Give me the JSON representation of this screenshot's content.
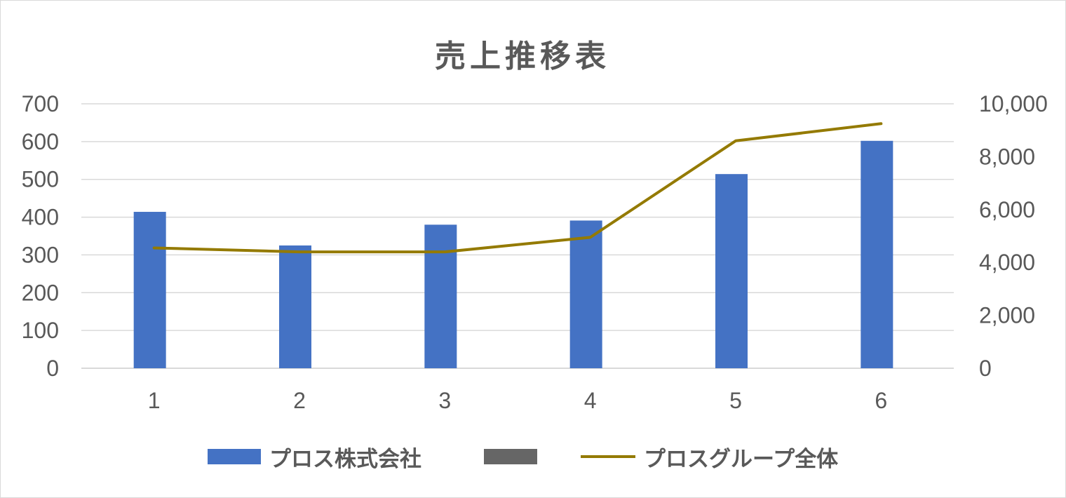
{
  "chart_data": {
    "type": "bar",
    "title": "売上推移表",
    "categories": [
      "1",
      "2",
      "3",
      "4",
      "5",
      "6"
    ],
    "y_ticks": [
      "0",
      "100",
      "200",
      "300",
      "400",
      "500",
      "600",
      "700"
    ],
    "y2_ticks": [
      "0",
      "2,000",
      "4,000",
      "6,000",
      "8,000",
      "10,000"
    ],
    "ylim": [
      0,
      700
    ],
    "y2lim": [
      0,
      10000
    ],
    "grid": true,
    "legend_position": "bottom",
    "series": [
      {
        "name": "プロス株式会社",
        "type": "bar",
        "axis": "left",
        "color": "#4472c4",
        "values": [
          414,
          325,
          380,
          391,
          514,
          602
        ]
      },
      {
        "name": "",
        "type": "bar",
        "axis": "left",
        "color": "#666666",
        "values": [
          0,
          0,
          0,
          0,
          0,
          0
        ]
      },
      {
        "name": "プロスグループ全体",
        "type": "line",
        "axis": "right",
        "color": "#947a00",
        "values": [
          4550,
          4400,
          4400,
          4950,
          8600,
          9250
        ]
      }
    ]
  },
  "legend": [
    {
      "label": "プロス株式会社",
      "color": "#4472c4",
      "kind": "box"
    },
    {
      "label": "",
      "color": "#666666",
      "kind": "box"
    },
    {
      "label": "プロスグループ全体",
      "color": "#947a00",
      "kind": "line"
    }
  ]
}
